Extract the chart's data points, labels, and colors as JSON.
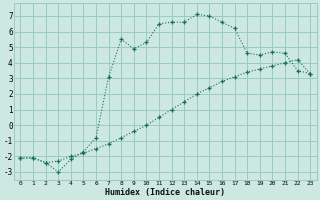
{
  "title": "",
  "xlabel": "Humidex (Indice chaleur)",
  "ylabel": "",
  "background_color": "#cce8e0",
  "grid_color": "#99ccc0",
  "line_color": "#1a6e5e",
  "xlim": [
    -0.5,
    23.5
  ],
  "ylim": [
    -3.5,
    7.8
  ],
  "yticks": [
    -3,
    -2,
    -1,
    0,
    1,
    2,
    3,
    4,
    5,
    6,
    7
  ],
  "xticks": [
    0,
    1,
    2,
    3,
    4,
    5,
    6,
    7,
    8,
    9,
    10,
    11,
    12,
    13,
    14,
    15,
    16,
    17,
    18,
    19,
    20,
    21,
    22,
    23
  ],
  "curve1_x": [
    0,
    1,
    2,
    3,
    4,
    5,
    6,
    7,
    8,
    9,
    10,
    11,
    12,
    13,
    14,
    15,
    16,
    17,
    18,
    19,
    20,
    21,
    22,
    23
  ],
  "curve1_y": [
    -2.1,
    -2.1,
    -2.4,
    -3.0,
    -2.2,
    -1.7,
    -0.8,
    3.1,
    5.5,
    4.9,
    5.3,
    6.5,
    6.6,
    6.6,
    7.1,
    7.0,
    6.6,
    6.2,
    4.6,
    4.5,
    4.7,
    4.6,
    3.5,
    3.3
  ],
  "curve2_x": [
    0,
    1,
    2,
    3,
    4,
    5,
    6,
    7,
    8,
    9,
    10,
    11,
    12,
    13,
    14,
    15,
    16,
    17,
    18,
    19,
    20,
    21,
    22,
    23
  ],
  "curve2_y": [
    -2.1,
    -2.1,
    -2.4,
    -2.3,
    -2.0,
    -1.8,
    -1.5,
    -1.2,
    -0.8,
    -0.4,
    0.0,
    0.5,
    1.0,
    1.5,
    2.0,
    2.4,
    2.8,
    3.1,
    3.4,
    3.6,
    3.8,
    4.0,
    4.2,
    3.3
  ]
}
